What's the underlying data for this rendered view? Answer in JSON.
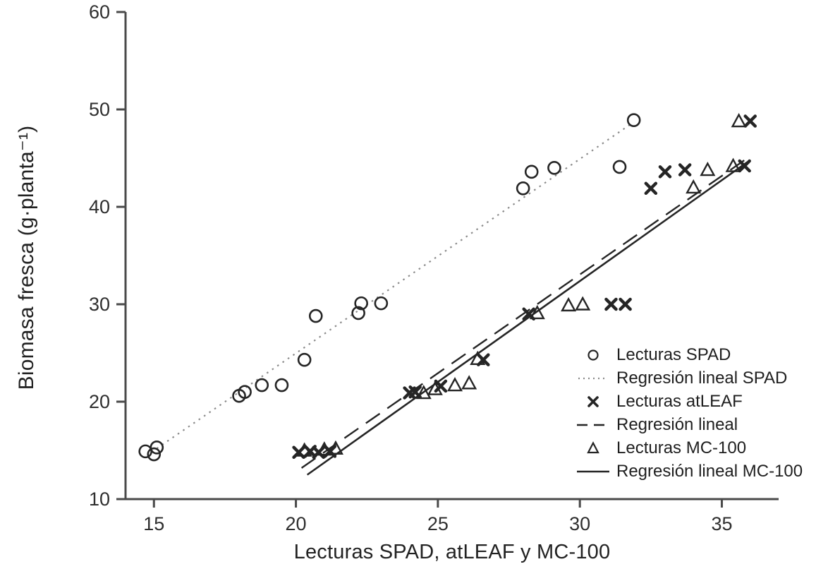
{
  "chart_data": {
    "type": "scatter",
    "title": "",
    "xlabel": "Lecturas SPAD, atLEAF y MC-100",
    "ylabel": "Biomasa fresca (g·planta⁻¹)",
    "xlim": [
      14,
      37
    ],
    "ylim": [
      10,
      60
    ],
    "xticks": [
      15,
      20,
      25,
      30,
      35
    ],
    "yticks": [
      10,
      20,
      30,
      40,
      50,
      60
    ],
    "grid": false,
    "legend_position": "inside-bottom-right",
    "colors": {
      "ink": "#252525",
      "muted_line": "#8b8b8b",
      "axis": "#4a4a4a"
    },
    "series": [
      {
        "name": "Lecturas SPAD",
        "kind": "scatter",
        "marker": "circle",
        "points": [
          [
            14.7,
            14.9
          ],
          [
            15.0,
            14.6
          ],
          [
            15.1,
            15.3
          ],
          [
            18.0,
            20.6
          ],
          [
            18.2,
            21.0
          ],
          [
            18.8,
            21.7
          ],
          [
            19.5,
            21.7
          ],
          [
            20.3,
            24.3
          ],
          [
            20.7,
            28.8
          ],
          [
            22.2,
            29.1
          ],
          [
            22.3,
            30.1
          ],
          [
            23.0,
            30.1
          ],
          [
            28.0,
            41.9
          ],
          [
            28.3,
            43.6
          ],
          [
            29.1,
            44.0
          ],
          [
            31.4,
            44.1
          ],
          [
            31.9,
            48.9
          ]
        ]
      },
      {
        "name": "Regresión lineal SPAD",
        "kind": "line",
        "line": "dotted",
        "points": [
          [
            15.1,
            15.2
          ],
          [
            31.85,
            48.6
          ]
        ]
      },
      {
        "name": "Lecturas atLEAF",
        "kind": "scatter",
        "marker": "x",
        "points": [
          [
            20.1,
            14.8
          ],
          [
            20.5,
            14.9
          ],
          [
            20.8,
            14.8
          ],
          [
            21.2,
            14.9
          ],
          [
            24.0,
            20.9
          ],
          [
            24.2,
            21.0
          ],
          [
            25.1,
            21.6
          ],
          [
            26.6,
            24.3
          ],
          [
            28.2,
            29.0
          ],
          [
            31.1,
            30.0
          ],
          [
            31.6,
            30.0
          ],
          [
            32.5,
            41.9
          ],
          [
            33.0,
            43.6
          ],
          [
            33.7,
            43.8
          ],
          [
            35.8,
            44.2
          ],
          [
            36.0,
            48.8
          ]
        ]
      },
      {
        "name": "Regresión lineal",
        "kind": "line",
        "line": "dashed",
        "points": [
          [
            20.2,
            13.2
          ],
          [
            35.9,
            45.0
          ]
        ]
      },
      {
        "name": "Lecturas MC-100",
        "kind": "scatter",
        "marker": "triangle",
        "points": [
          [
            20.3,
            15.0
          ],
          [
            21.0,
            15.1
          ],
          [
            21.4,
            15.2
          ],
          [
            24.5,
            20.9
          ],
          [
            24.9,
            21.3
          ],
          [
            25.6,
            21.7
          ],
          [
            26.1,
            21.9
          ],
          [
            26.4,
            24.4
          ],
          [
            28.5,
            29.1
          ],
          [
            29.6,
            29.9
          ],
          [
            30.1,
            30.0
          ],
          [
            34.0,
            42.0
          ],
          [
            34.5,
            43.8
          ],
          [
            35.4,
            44.2
          ],
          [
            35.6,
            48.8
          ]
        ]
      },
      {
        "name": "Regresión lineal MC-100",
        "kind": "line",
        "line": "solid",
        "points": [
          [
            20.4,
            12.5
          ],
          [
            35.9,
            44.6
          ]
        ]
      }
    ]
  }
}
